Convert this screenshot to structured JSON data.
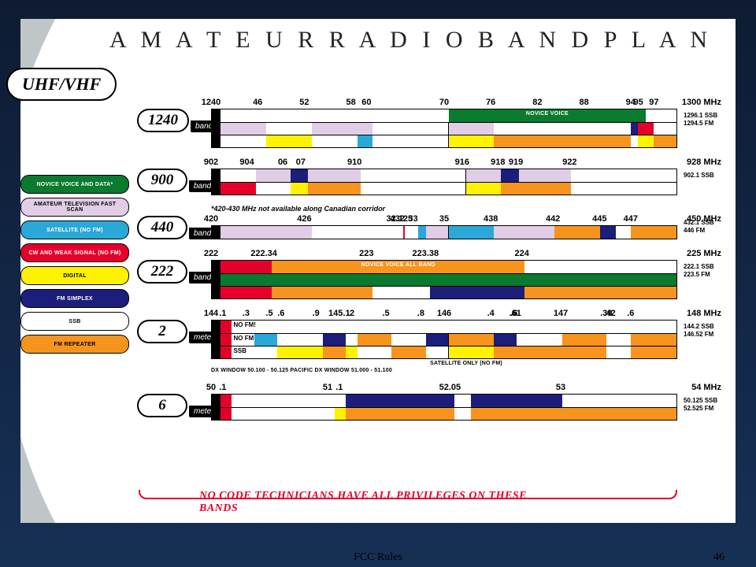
{
  "colors": {
    "novice": "#0a7a2e",
    "atv": "#e1cde6",
    "sat": "#2aa8d8",
    "cw": "#e4002b",
    "digital": "#fff200",
    "fmsimplex": "#1b1e7a",
    "ssb": "#ffffff",
    "repeater": "#f7941d",
    "border": "#000000",
    "bracket": "#e4002b"
  },
  "title": "A M A T E U R   R A D I O   B A N D   P L A N",
  "section": "UHF/VHF",
  "slide_footer": "FCC Rules",
  "slide_number": "46",
  "footer_note": "NO CODE TECHNICIANS HAVE ALL PRIVILEGES ON THESE BANDS",
  "legend": [
    {
      "label": "NOVICE VOICE AND DATA*",
      "bg": "novice",
      "fg": "#ffffff"
    },
    {
      "label": "AMATEUR TELEVISION FAST SCAN",
      "bg": "atv",
      "fg": "#000000"
    },
    {
      "label": "SATELLITE (NO FM)",
      "bg": "sat",
      "fg": "#ffffff"
    },
    {
      "label": "CW AND WEAK SIGNAL (NO FM)",
      "bg": "cw",
      "fg": "#ffffff"
    },
    {
      "label": "DIGITAL",
      "bg": "digital",
      "fg": "#000000"
    },
    {
      "label": "FM SIMPLEX",
      "bg": "fmsimplex",
      "fg": "#ffffff"
    },
    {
      "label": "SSB",
      "bg": "ssb",
      "fg": "#000000"
    },
    {
      "label": "FM REPEATER",
      "bg": "repeater",
      "fg": "#000000"
    }
  ],
  "bands": [
    {
      "name": "1240",
      "unit": "band",
      "range": [
        1240,
        1300
      ],
      "ticks": [
        [
          1240,
          "1240"
        ],
        [
          1246,
          "46"
        ],
        [
          1252,
          "52"
        ],
        [
          1258,
          "58"
        ],
        [
          1260,
          "60"
        ],
        [
          1270,
          "70"
        ],
        [
          1276,
          "76"
        ],
        [
          1282,
          "82"
        ],
        [
          1288,
          "88"
        ],
        [
          1294,
          "94"
        ],
        [
          1295,
          "95"
        ],
        [
          1297,
          "97"
        ],
        [
          1300,
          "1300 MHz"
        ]
      ],
      "note": [
        "1296.1 SSB",
        "1294.5 FM"
      ],
      "rows": [
        [
          [
            "ssb",
            0,
            50
          ],
          [
            "novice",
            50,
            93.33,
            "NOVICE VOICE"
          ],
          [
            "ssb",
            93.33,
            100
          ]
        ],
        [
          [
            "atv",
            0,
            10
          ],
          [
            "ssb",
            10,
            20
          ],
          [
            "atv",
            20,
            33.3
          ],
          [
            "ssb",
            33.3,
            50
          ],
          [
            "atv",
            50,
            60
          ],
          [
            "ssb",
            60,
            90
          ],
          [
            "fmsimplex",
            90,
            91.6
          ],
          [
            "cw",
            91.6,
            95
          ],
          [
            "ssb",
            95,
            100
          ]
        ],
        [
          [
            "ssb",
            0,
            10
          ],
          [
            "digital",
            10,
            20
          ],
          [
            "ssb",
            20,
            30
          ],
          [
            "sat",
            30,
            33.3
          ],
          [
            "ssb",
            33.3,
            50
          ],
          [
            "digital",
            50,
            60
          ],
          [
            "repeater",
            60,
            90
          ],
          [
            "ssb",
            90,
            91.6
          ],
          [
            "digital",
            91.6,
            95
          ],
          [
            "repeater",
            95,
            100
          ]
        ]
      ]
    },
    {
      "name": "900",
      "unit": "band",
      "range": [
        902,
        928
      ],
      "ticks": [
        [
          902,
          "902"
        ],
        [
          904,
          "904"
        ],
        [
          906,
          "06"
        ],
        [
          907,
          "07"
        ],
        [
          910,
          "910"
        ],
        [
          916,
          "916"
        ],
        [
          918,
          "918"
        ],
        [
          919,
          "919"
        ],
        [
          922,
          "922"
        ],
        [
          928,
          "928 MHz"
        ]
      ],
      "note": [
        "902.1 SSB"
      ],
      "rows": [
        [
          [
            "ssb",
            0,
            7.7
          ],
          [
            "atv",
            7.7,
            15.4
          ],
          [
            "fmsimplex",
            15.4,
            19.2
          ],
          [
            "atv",
            19.2,
            30.8
          ],
          [
            "ssb",
            30.8,
            53.8
          ],
          [
            "atv",
            53.8,
            61.5
          ],
          [
            "fmsimplex",
            61.5,
            65.4
          ],
          [
            "atv",
            65.4,
            76.9
          ],
          [
            "ssb",
            76.9,
            100
          ]
        ],
        [
          [
            "cw",
            0,
            7.7
          ],
          [
            "ssb",
            7.7,
            15.4
          ],
          [
            "digital",
            15.4,
            19.2
          ],
          [
            "repeater",
            19.2,
            30.8
          ],
          [
            "ssb",
            30.8,
            53.8
          ],
          [
            "digital",
            53.8,
            61.5
          ],
          [
            "repeater",
            61.5,
            76.9
          ],
          [
            "ssb",
            76.9,
            100
          ]
        ]
      ]
    },
    {
      "name": "440",
      "unit": "band",
      "range": [
        420,
        450
      ],
      "subnote": "*420-430 MHz not available along Canadian corridor",
      "ticks": [
        [
          420,
          "420"
        ],
        [
          426,
          "426"
        ],
        [
          432,
          "432"
        ],
        [
          432.125,
          "32.125"
        ],
        [
          433,
          "33"
        ],
        [
          435,
          "35"
        ],
        [
          438,
          "438"
        ],
        [
          442,
          "442"
        ],
        [
          445,
          "445"
        ],
        [
          447,
          "447"
        ],
        [
          450,
          "450 MHz"
        ]
      ],
      "note": [
        "432.1 SSB",
        "446 FM"
      ],
      "rows": [
        [
          [
            "atv",
            0,
            20
          ],
          [
            "ssb",
            20,
            40
          ],
          [
            "cw",
            40,
            40.4
          ],
          [
            "ssb",
            40.4,
            43.3
          ],
          [
            "sat",
            43.3,
            45
          ],
          [
            "atv",
            45,
            50
          ],
          [
            "sat",
            50,
            60
          ],
          [
            "atv",
            60,
            73.3
          ],
          [
            "repeater",
            73.3,
            83.3
          ],
          [
            "fmsimplex",
            83.3,
            86.7
          ],
          [
            "ssb",
            86.7,
            90
          ],
          [
            "repeater",
            90,
            100
          ]
        ]
      ]
    },
    {
      "name": "222",
      "unit": "band",
      "range": [
        222,
        225
      ],
      "ticks": [
        [
          222,
          "222"
        ],
        [
          222.34,
          "222.34"
        ],
        [
          223,
          "223"
        ],
        [
          223.38,
          "223.38"
        ],
        [
          224,
          "224"
        ],
        [
          225,
          "225 MHz"
        ]
      ],
      "note": [
        "222.1 SSB",
        "223.5 FM"
      ],
      "rows": [
        [
          [
            "cw",
            0,
            11.3
          ],
          [
            "repeater",
            11.3,
            66.7,
            "NOVICE VOICE ALL BAND"
          ],
          [
            "ssb",
            66.7,
            100
          ]
        ],
        [
          [
            "novice",
            0,
            100
          ]
        ],
        [
          [
            "cw",
            0,
            11.3
          ],
          [
            "repeater",
            11.3,
            33.3
          ],
          [
            "ssb",
            33.3,
            46
          ],
          [
            "fmsimplex",
            46,
            66.7
          ],
          [
            "repeater",
            66.7,
            100
          ]
        ]
      ]
    },
    {
      "name": "2",
      "unit": "meters",
      "range": [
        144,
        148
      ],
      "ticks": [
        [
          144,
          "144"
        ],
        [
          144.1,
          ".1"
        ],
        [
          144.3,
          ".3"
        ],
        [
          144.5,
          ".5"
        ],
        [
          144.6,
          ".6"
        ],
        [
          144.9,
          ".9"
        ],
        [
          145.1,
          "145.1"
        ],
        [
          145.2,
          ".2"
        ],
        [
          145.5,
          ".5"
        ],
        [
          145.8,
          ".8"
        ],
        [
          146,
          "146"
        ],
        [
          146.4,
          ".4"
        ],
        [
          146.6,
          ".6"
        ],
        [
          146.61,
          ".61"
        ],
        [
          147,
          "147"
        ],
        [
          147.39,
          ".39"
        ],
        [
          147.42,
          ".42"
        ],
        [
          147.6,
          ".6"
        ],
        [
          148,
          "148 MHz"
        ]
      ],
      "note": [
        "144.2 SSB",
        "146.52 FM"
      ],
      "micro": "DX WINDOW 50.100 - 50.125        PACIFIC DX WINDOW 51.000 - 51.100",
      "midlabel": "SATELLITE ONLY (NO FM)",
      "rows": [
        [
          [
            "cw",
            0,
            2.5
          ],
          [
            "ssb",
            2.5,
            100,
            "NO FM!"
          ]
        ],
        [
          [
            "cw",
            0,
            2.5
          ],
          [
            "ssb",
            2.5,
            7.5,
            "NO FM!"
          ],
          [
            "sat",
            7.5,
            12.5
          ],
          [
            "ssb",
            12.5,
            22.5
          ],
          [
            "fmsimplex",
            22.5,
            27.5
          ],
          [
            "ssb",
            27.5,
            30
          ],
          [
            "repeater",
            30,
            37.5
          ],
          [
            "ssb",
            37.5,
            45
          ],
          [
            "fmsimplex",
            45,
            50
          ],
          [
            "repeater",
            50,
            60
          ],
          [
            "fmsimplex",
            60,
            65
          ],
          [
            "ssb",
            65,
            75
          ],
          [
            "repeater",
            75,
            84.7
          ],
          [
            "ssb",
            84.7,
            90
          ],
          [
            "repeater",
            90,
            100
          ]
        ],
        [
          [
            "cw",
            0,
            2.5
          ],
          [
            "ssb",
            2.5,
            12.5,
            "SSB"
          ],
          [
            "digital",
            12.5,
            22.5
          ],
          [
            "repeater",
            22.5,
            27.5
          ],
          [
            "digital",
            27.5,
            30
          ],
          [
            "ssb",
            30,
            37.5
          ],
          [
            "repeater",
            37.5,
            45
          ],
          [
            "ssb",
            45,
            50
          ],
          [
            "digital",
            50,
            60
          ],
          [
            "repeater",
            60,
            84.7
          ],
          [
            "ssb",
            84.7,
            90
          ],
          [
            "repeater",
            90,
            100
          ]
        ]
      ]
    },
    {
      "name": "6",
      "unit": "meters",
      "range": [
        50,
        54
      ],
      "ticks": [
        [
          50,
          "50"
        ],
        [
          50.1,
          ".1"
        ],
        [
          51,
          "51"
        ],
        [
          51.1,
          ".1"
        ],
        [
          52.05,
          "52.05"
        ],
        [
          53,
          "53"
        ],
        [
          54,
          "54 MHz"
        ]
      ],
      "note": [
        "50.125 SSB",
        "52.525 FM"
      ],
      "rows": [
        [
          [
            "cw",
            0,
            2.5
          ],
          [
            "ssb",
            2.5,
            25
          ],
          [
            "ssb",
            25,
            27.5
          ],
          [
            "fmsimplex",
            27.5,
            51.25
          ],
          [
            "ssb",
            51.25,
            55
          ],
          [
            "fmsimplex",
            55,
            75
          ],
          [
            "ssb",
            75,
            100
          ]
        ],
        [
          [
            "cw",
            0,
            2.5
          ],
          [
            "ssb",
            2.5,
            25
          ],
          [
            "digital",
            25,
            27.5
          ],
          [
            "repeater",
            27.5,
            51.25
          ],
          [
            "ssb",
            51.25,
            55
          ],
          [
            "repeater",
            55,
            100
          ]
        ]
      ]
    }
  ]
}
